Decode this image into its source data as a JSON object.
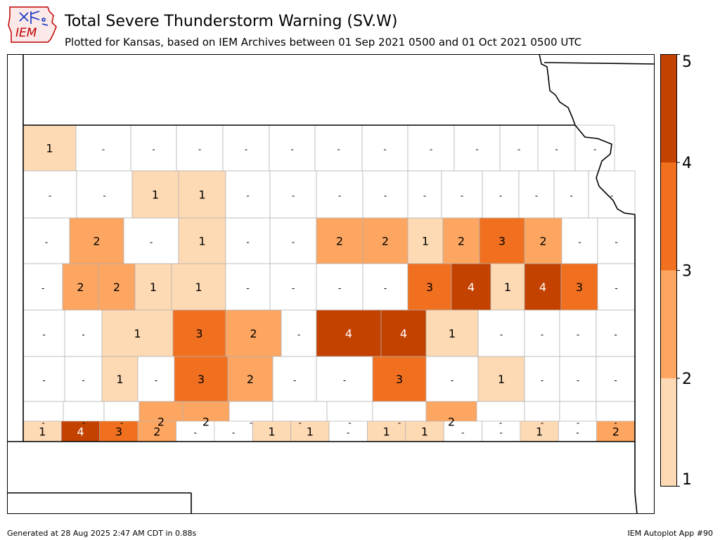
{
  "header": {
    "title": "Total Severe Thunderstorm Warning (SV.W)",
    "subtitle": "Plotted for Kansas, based on IEM Archives  between 01 Sep 2021 0500 and 01 Oct 2021 0500 UTC"
  },
  "logo": {
    "text": "IEM",
    "icon": "iem-iowa-logo-icon"
  },
  "footer": {
    "left": "Generated at 28 Aug 2025 2:47 AM CDT in 0.88s",
    "right": "IEM Autoplot App #90"
  },
  "legend": {
    "ticks": [
      "1",
      "2",
      "3",
      "4",
      "5"
    ],
    "colors": [
      "#fdd9b4",
      "#fda661",
      "#f0701f",
      "#c44200"
    ]
  },
  "map": {
    "no_value": "-",
    "counties": [
      {
        "value": "1"
      },
      {
        "value": "-"
      },
      {
        "value": "-"
      },
      {
        "value": "-"
      },
      {
        "value": "-"
      },
      {
        "value": "-"
      },
      {
        "value": "-"
      },
      {
        "value": "-"
      },
      {
        "value": "-"
      },
      {
        "value": "-"
      },
      {
        "value": "-"
      },
      {
        "value": "-"
      },
      {
        "value": "-"
      },
      {
        "value": "-"
      },
      {
        "value": "-"
      },
      {
        "value": "1"
      },
      {
        "value": "1"
      },
      {
        "value": "-"
      },
      {
        "value": "-"
      },
      {
        "value": "-"
      },
      {
        "value": "-"
      },
      {
        "value": "-"
      },
      {
        "value": "-"
      },
      {
        "value": "-"
      },
      {
        "value": "-"
      },
      {
        "value": "-"
      },
      {
        "value": "-"
      },
      {
        "value": "-"
      },
      {
        "value": "2"
      },
      {
        "value": "-"
      },
      {
        "value": "1"
      },
      {
        "value": "-"
      },
      {
        "value": "-"
      },
      {
        "value": "2"
      },
      {
        "value": "2"
      },
      {
        "value": "1"
      },
      {
        "value": "2"
      },
      {
        "value": "3"
      },
      {
        "value": "2"
      },
      {
        "value": "-"
      },
      {
        "value": "-"
      },
      {
        "value": "-"
      },
      {
        "value": "2"
      },
      {
        "value": "2"
      },
      {
        "value": "1"
      },
      {
        "value": "1"
      },
      {
        "value": "-"
      },
      {
        "value": "-"
      },
      {
        "value": "-"
      },
      {
        "value": "-"
      },
      {
        "value": "3"
      },
      {
        "value": "4"
      },
      {
        "value": "1"
      },
      {
        "value": "4"
      },
      {
        "value": "3"
      },
      {
        "value": "-"
      },
      {
        "value": "-"
      },
      {
        "value": "-"
      },
      {
        "value": "1"
      },
      {
        "value": "3"
      },
      {
        "value": "2"
      },
      {
        "value": "-"
      },
      {
        "value": "4"
      },
      {
        "value": "4"
      },
      {
        "value": "1"
      },
      {
        "value": "-"
      },
      {
        "value": "-"
      },
      {
        "value": "-"
      },
      {
        "value": "-"
      },
      {
        "value": "-"
      },
      {
        "value": "-"
      },
      {
        "value": "1"
      },
      {
        "value": "-"
      },
      {
        "value": "3"
      },
      {
        "value": "2"
      },
      {
        "value": "-"
      },
      {
        "value": "-"
      },
      {
        "value": "3"
      },
      {
        "value": "-"
      },
      {
        "value": "1"
      },
      {
        "value": "-"
      },
      {
        "value": "-"
      },
      {
        "value": "-"
      },
      {
        "value": "-"
      },
      {
        "value": "-"
      },
      {
        "value": "-"
      },
      {
        "value": "2"
      },
      {
        "value": "2"
      },
      {
        "value": "-"
      },
      {
        "value": "-"
      },
      {
        "value": "-"
      },
      {
        "value": "-"
      },
      {
        "value": "2"
      },
      {
        "value": "-"
      },
      {
        "value": "-"
      },
      {
        "value": "-"
      },
      {
        "value": "-"
      },
      {
        "value": "1"
      },
      {
        "value": "4"
      },
      {
        "value": "3"
      },
      {
        "value": "2"
      },
      {
        "value": "-"
      },
      {
        "value": "-"
      },
      {
        "value": "1"
      },
      {
        "value": "1"
      },
      {
        "value": "-"
      },
      {
        "value": "1"
      },
      {
        "value": "1"
      },
      {
        "value": "-"
      },
      {
        "value": "-"
      },
      {
        "value": "1"
      },
      {
        "value": "-"
      },
      {
        "value": "2"
      }
    ]
  }
}
